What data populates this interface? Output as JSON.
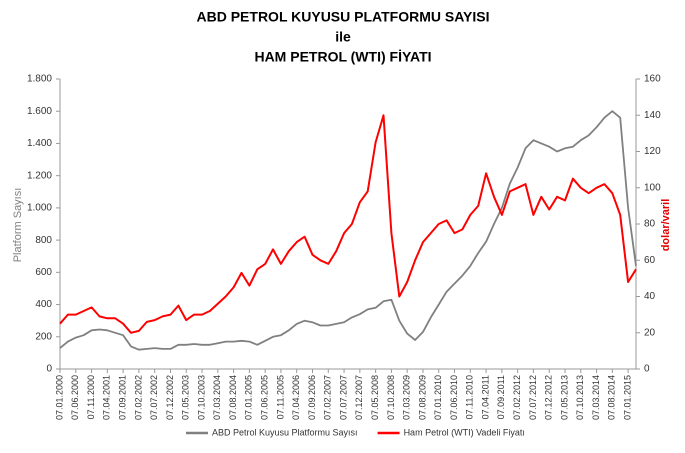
{
  "chart_data": {
    "type": "line",
    "title": [
      "ABD PETROL KUYUSU PLATFORMU SAYISI",
      "ile",
      "HAM PETROL (WTI) FİYATI"
    ],
    "y_label": "Platform Sayısı",
    "y2_label": "dolar/varil",
    "categories": [
      "07.01.2000",
      null,
      "07.06.2000",
      null,
      "07.11.2000",
      null,
      "07.04.2001",
      null,
      "07.09.2001",
      null,
      "07.02.2002",
      null,
      "07.07.2002",
      null,
      "07.12.2002",
      null,
      "07.05.2003",
      null,
      "07.10.2003",
      null,
      "07.03.2004",
      null,
      "07.08.2004",
      null,
      "07.01.2005",
      null,
      "07.06.2005",
      null,
      "07.11.2005",
      null,
      "07.04.2006",
      null,
      "07.09.2006",
      null,
      "07.02.2007",
      null,
      "07.07.2007",
      null,
      "07.12.2007",
      null,
      "07.05.2008",
      null,
      "07.10.2008",
      null,
      "07.03.2009",
      null,
      "07.08.2009",
      null,
      "07.01.2010",
      null,
      "07.06.2010",
      null,
      "07.11.2010",
      null,
      "07.04.2011",
      null,
      "07.09.2011",
      null,
      "07.02.2012",
      null,
      "07.07.2012",
      null,
      "07.12.2012",
      null,
      "07.05.2013",
      null,
      "07.10.2013",
      null,
      "07.03.2014",
      null,
      "07.08.2014",
      null,
      "07.01.2015",
      null
    ],
    "series": [
      {
        "name": "ABD Petrol Kuyusu Platformu Sayısı",
        "color": "#808080",
        "axis": "y",
        "values": [
          130,
          170,
          195,
          210,
          240,
          245,
          240,
          225,
          210,
          140,
          120,
          125,
          130,
          125,
          125,
          150,
          150,
          155,
          150,
          150,
          160,
          170,
          170,
          175,
          170,
          150,
          175,
          200,
          210,
          240,
          280,
          300,
          290,
          270,
          270,
          280,
          290,
          320,
          340,
          370,
          380,
          420,
          430,
          300,
          220,
          180,
          230,
          320,
          400,
          480,
          530,
          580,
          640,
          720,
          790,
          900,
          1000,
          1150,
          1250,
          1370,
          1420,
          1400,
          1380,
          1350,
          1370,
          1380,
          1420,
          1450,
          1500,
          1560,
          1600,
          1560,
          1000,
          640
        ]
      },
      {
        "name": "Ham Petrol (WTI) Vadeli Fiyatı",
        "color": "#ff0000",
        "axis": "y2",
        "values": [
          25,
          30,
          30,
          32,
          34,
          29,
          28,
          28,
          25,
          20,
          21,
          26,
          27,
          29,
          30,
          35,
          27,
          30,
          30,
          32,
          36,
          40,
          45,
          53,
          46,
          55,
          58,
          66,
          58,
          65,
          70,
          73,
          63,
          60,
          58,
          65,
          75,
          80,
          92,
          98,
          125,
          140,
          75,
          40,
          48,
          60,
          70,
          75,
          80,
          82,
          75,
          77,
          85,
          90,
          108,
          95,
          85,
          98,
          100,
          102,
          85,
          95,
          88,
          95,
          93,
          105,
          100,
          97,
          100,
          102,
          97,
          85,
          48,
          55
        ]
      }
    ],
    "ylim": [
      0,
      1800
    ],
    "yticks": [
      0,
      200,
      400,
      600,
      800,
      {
        "value": 1000,
        "label": "1.000"
      },
      {
        "value": 1200,
        "label": "1.200"
      },
      {
        "value": 1400,
        "label": "1.400"
      },
      {
        "value": 1600,
        "label": "1.600"
      },
      {
        "value": 1800,
        "label": "1.800"
      }
    ],
    "y2lim": [
      0,
      160
    ],
    "y2ticks": [
      0,
      20,
      40,
      60,
      80,
      100,
      120,
      140,
      160
    ],
    "legend": "bottom"
  }
}
